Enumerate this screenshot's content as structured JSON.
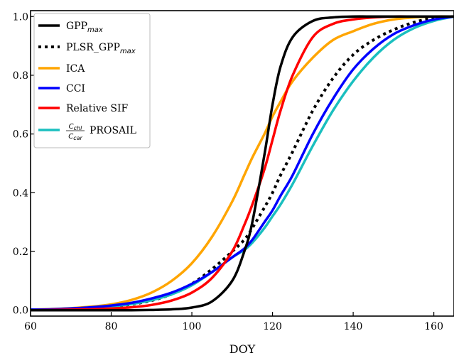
{
  "chart_data": {
    "type": "line",
    "title": "",
    "xlabel": "DOY",
    "ylabel": "",
    "xlim": [
      60,
      165
    ],
    "ylim": [
      -0.02,
      1.02
    ],
    "x_ticks": [
      60,
      80,
      100,
      120,
      140,
      160
    ],
    "y_ticks": [
      0.0,
      0.2,
      0.4,
      0.6,
      0.8,
      1.0
    ],
    "x_tick_labels": [
      "60",
      "80",
      "100",
      "120",
      "140",
      "160"
    ],
    "y_tick_labels": [
      "0.0",
      "0.2",
      "0.4",
      "0.6",
      "0.8",
      "1.0"
    ],
    "grid": false,
    "legend_position": "top-left",
    "x": [
      60,
      65,
      70,
      75,
      80,
      85,
      90,
      95,
      100,
      105,
      110,
      113,
      115,
      118,
      120,
      122,
      125,
      130,
      135,
      140,
      145,
      150,
      155,
      160,
      165
    ],
    "series": [
      {
        "name": "GPP_max",
        "label_main": "GPP",
        "label_sub": "max",
        "color": "#000000",
        "dash": "solid",
        "values": [
          0.0,
          0.0,
          0.0,
          0.0,
          0.0,
          0.0,
          0.001,
          0.003,
          0.009,
          0.03,
          0.1,
          0.2,
          0.3,
          0.53,
          0.7,
          0.83,
          0.93,
          0.985,
          0.997,
          1.0,
          1.0,
          1.0,
          1.0,
          1.0,
          1.0
        ]
      },
      {
        "name": "PLSR_GPP_max",
        "label_main": "PLSR_GPP",
        "label_sub": "max",
        "color": "#000000",
        "dash": "dotted",
        "values": [
          0.001,
          0.002,
          0.004,
          0.007,
          0.012,
          0.02,
          0.033,
          0.055,
          0.09,
          0.14,
          0.2,
          0.24,
          0.28,
          0.35,
          0.4,
          0.46,
          0.54,
          0.68,
          0.79,
          0.87,
          0.92,
          0.955,
          0.98,
          0.995,
          1.0
        ]
      },
      {
        "name": "ICA",
        "label_main": "ICA",
        "label_sub": "",
        "color": "#FFA500",
        "dash": "solid",
        "values": [
          0.002,
          0.004,
          0.007,
          0.012,
          0.02,
          0.035,
          0.06,
          0.1,
          0.16,
          0.25,
          0.37,
          0.46,
          0.52,
          0.6,
          0.66,
          0.71,
          0.78,
          0.86,
          0.92,
          0.95,
          0.975,
          0.99,
          0.997,
          1.0,
          1.0
        ]
      },
      {
        "name": "CCI",
        "label_main": "CCI",
        "label_sub": "",
        "color": "#0000FF",
        "dash": "solid",
        "values": [
          0.002,
          0.003,
          0.006,
          0.01,
          0.016,
          0.025,
          0.04,
          0.06,
          0.09,
          0.13,
          0.18,
          0.21,
          0.24,
          0.3,
          0.34,
          0.39,
          0.46,
          0.6,
          0.72,
          0.82,
          0.89,
          0.94,
          0.97,
          0.99,
          1.0
        ]
      },
      {
        "name": "Relative SIF",
        "label_main": "Relative SIF",
        "label_sub": "",
        "color": "#FF0000",
        "dash": "solid",
        "values": [
          0.0,
          0.001,
          0.002,
          0.003,
          0.006,
          0.01,
          0.018,
          0.033,
          0.06,
          0.11,
          0.2,
          0.29,
          0.36,
          0.48,
          0.58,
          0.68,
          0.8,
          0.93,
          0.975,
          0.99,
          0.997,
          1.0,
          1.0,
          1.0,
          1.0
        ]
      },
      {
        "name": "C_chl/C_car PROSAIL",
        "label_main": "PROSAIL",
        "label_num": "C",
        "label_num_sub": "chl",
        "label_den": "C",
        "label_den_sub": "car",
        "color": "#1ABFBF",
        "dash": "solid",
        "values": [
          0.002,
          0.003,
          0.005,
          0.008,
          0.013,
          0.021,
          0.034,
          0.054,
          0.085,
          0.13,
          0.18,
          0.205,
          0.23,
          0.28,
          0.32,
          0.36,
          0.43,
          0.56,
          0.68,
          0.78,
          0.86,
          0.92,
          0.96,
          0.985,
          1.0
        ]
      }
    ]
  }
}
